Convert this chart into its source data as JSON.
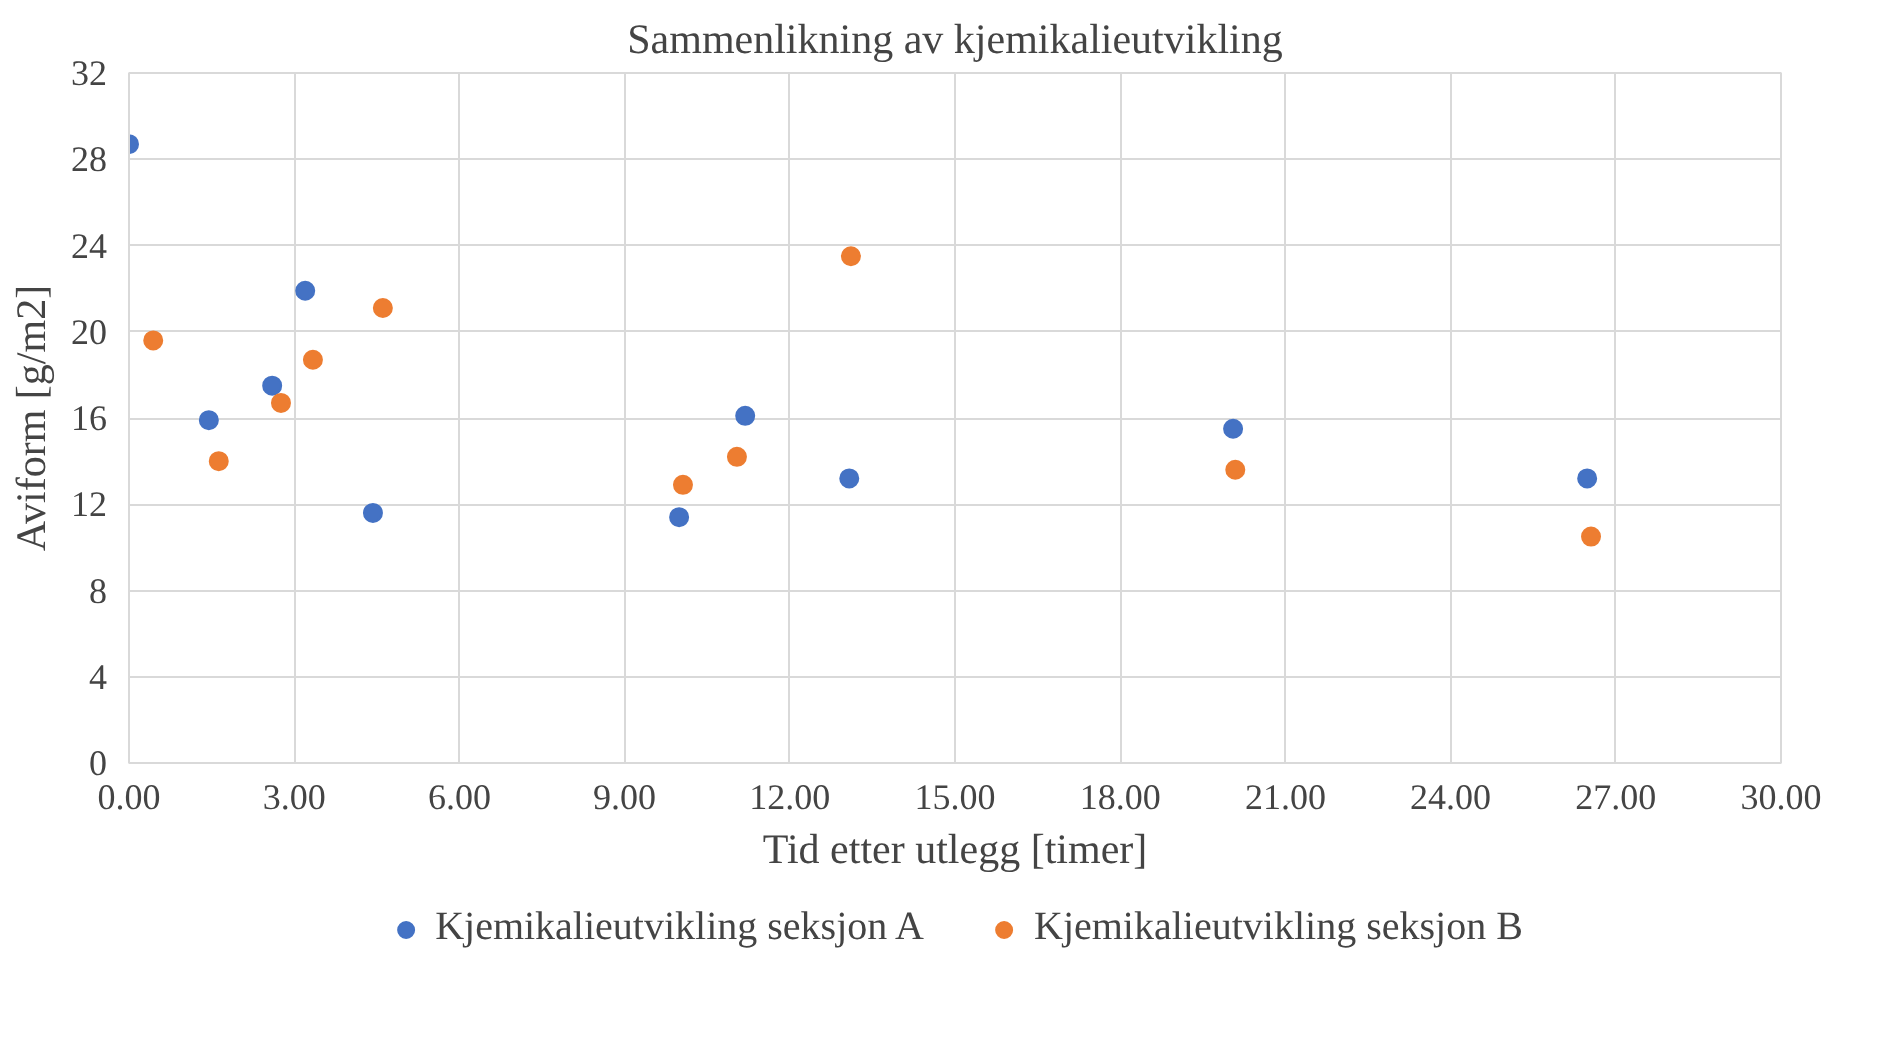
{
  "chart_data": {
    "type": "scatter",
    "title": "Sammenlikning av kjemikalieutvikling",
    "xlabel": "Tid etter utlegg [timer]",
    "ylabel": "Aviform [g/m2]",
    "xlim": [
      0,
      30
    ],
    "ylim": [
      0,
      32
    ],
    "xticks": [
      {
        "value": 0,
        "label": "0.00"
      },
      {
        "value": 3,
        "label": "3.00"
      },
      {
        "value": 6,
        "label": "6.00"
      },
      {
        "value": 9,
        "label": "9.00"
      },
      {
        "value": 12,
        "label": "12.00"
      },
      {
        "value": 15,
        "label": "15.00"
      },
      {
        "value": 18,
        "label": "18.00"
      },
      {
        "value": 21,
        "label": "21.00"
      },
      {
        "value": 24,
        "label": "24.00"
      },
      {
        "value": 27,
        "label": "27.00"
      },
      {
        "value": 30,
        "label": "30.00"
      }
    ],
    "yticks": [
      0,
      4,
      8,
      12,
      16,
      20,
      24,
      28,
      32
    ],
    "grid": true,
    "legend": "bottom",
    "marker": "circle",
    "series": [
      {
        "name": "Kjemikalieutvikling seksjon A",
        "color": "#4472c4",
        "x": [
          0,
          1.45,
          2.6,
          3.2,
          4.43,
          9.99,
          11.19,
          13.08,
          20.05,
          26.48
        ],
        "values": [
          28.7,
          15.9,
          17.5,
          21.9,
          11.6,
          11.4,
          16.1,
          13.2,
          15.5,
          13.2
        ]
      },
      {
        "name": "Kjemikalieutvikling seksjon B",
        "color": "#ed7d31",
        "x": [
          0.44,
          1.63,
          2.76,
          3.34,
          4.61,
          10.06,
          11.04,
          13.11,
          20.09,
          26.55
        ],
        "values": [
          19.6,
          14.0,
          16.7,
          18.7,
          21.1,
          12.9,
          14.2,
          23.5,
          13.6,
          10.5
        ]
      }
    ]
  }
}
